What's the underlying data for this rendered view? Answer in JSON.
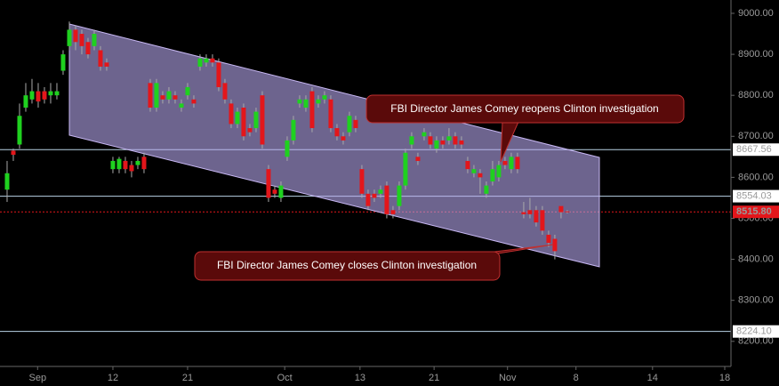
{
  "chart_data": {
    "type": "candlestick",
    "up_color": "#1fd11f",
    "down_color": "#e3161b",
    "x": [
      0,
      1,
      2,
      3,
      4,
      5,
      6,
      7,
      8,
      9,
      10,
      11,
      12,
      13,
      14,
      15,
      16,
      17,
      18,
      19,
      20,
      21,
      22,
      23,
      24,
      25,
      26,
      27,
      28,
      29,
      30,
      31,
      32,
      33,
      34,
      35,
      36,
      37,
      38,
      39,
      40,
      41,
      42,
      43,
      44,
      45,
      46,
      47,
      48,
      49,
      50,
      51,
      52,
      53,
      54,
      55,
      56,
      57,
      58,
      59,
      60,
      61,
      62,
      63,
      64,
      65,
      66,
      67,
      68,
      69,
      70,
      71,
      72,
      73,
      74,
      75,
      76,
      77,
      78,
      79,
      80,
      81,
      82,
      83,
      84,
      85,
      86,
      87,
      88,
      89,
      90
    ],
    "open": [
      8570,
      8665,
      8680,
      8770,
      8790,
      8810,
      8810,
      8800,
      8800,
      8860,
      8920,
      8960,
      8950,
      8930,
      8920,
      8910,
      8880,
      8620,
      8620,
      8640,
      8630,
      8630,
      8650,
      8830,
      8770,
      8800,
      8790,
      8800,
      8770,
      8800,
      8790,
      8870,
      8880,
      8890,
      8880,
      8830,
      8780,
      8730,
      8770,
      8720,
      8720,
      8800,
      8620,
      8570,
      8550,
      8650,
      8690,
      8780,
      8770,
      8810,
      8780,
      8790,
      8790,
      8720,
      8700,
      8710,
      8740,
      8620,
      8560,
      8560,
      8560,
      8580,
      8520,
      8530,
      8580,
      8680,
      8650,
      8700,
      8700,
      8670,
      8690,
      8690,
      8700,
      8690,
      8640,
      8610,
      8610,
      8560,
      8590,
      8600,
      8640,
      8620,
      8650,
      8515,
      8520,
      8520,
      8520,
      8460,
      8450,
      8530,
      8517
    ],
    "high": [
      8640,
      8670,
      8780,
      8830,
      8840,
      8830,
      8820,
      8830,
      8830,
      8910,
      8980,
      8970,
      8960,
      8940,
      8960,
      8920,
      8890,
      8650,
      8650,
      8650,
      8640,
      8650,
      8660,
      8840,
      8840,
      8810,
      8820,
      8810,
      8790,
      8830,
      8800,
      8900,
      8900,
      8900,
      8890,
      8840,
      8790,
      8770,
      8780,
      8730,
      8770,
      8810,
      8630,
      8580,
      8590,
      8700,
      8750,
      8800,
      8800,
      8820,
      8800,
      8810,
      8800,
      8730,
      8710,
      8760,
      8750,
      8630,
      8570,
      8570,
      8580,
      8590,
      8530,
      8590,
      8670,
      8710,
      8660,
      8720,
      8710,
      8700,
      8700,
      8720,
      8710,
      8700,
      8650,
      8630,
      8620,
      8590,
      8640,
      8640,
      8650,
      8660,
      8660,
      8540,
      8550,
      8530,
      8530,
      8470,
      8460,
      8530,
      8520
    ],
    "low": [
      8540,
      8640,
      8670,
      8760,
      8780,
      8770,
      8780,
      8780,
      8790,
      8850,
      8910,
      8910,
      8900,
      8890,
      8910,
      8860,
      8860,
      8610,
      8610,
      8610,
      8600,
      8620,
      8610,
      8760,
      8760,
      8780,
      8780,
      8780,
      8760,
      8790,
      8770,
      8860,
      8870,
      8870,
      8810,
      8780,
      8720,
      8720,
      8690,
      8700,
      8710,
      8670,
      8540,
      8550,
      8540,
      8640,
      8680,
      8770,
      8760,
      8710,
      8770,
      8780,
      8710,
      8690,
      8680,
      8700,
      8710,
      8550,
      8520,
      8540,
      8550,
      8500,
      8500,
      8520,
      8570,
      8670,
      8630,
      8690,
      8670,
      8660,
      8670,
      8680,
      8670,
      8670,
      8610,
      8600,
      8560,
      8550,
      8580,
      8590,
      8620,
      8610,
      8610,
      8500,
      8500,
      8480,
      8460,
      8430,
      8400,
      8500,
      8512
    ],
    "close": [
      8610,
      8655,
      8750,
      8800,
      8810,
      8785,
      8790,
      8810,
      8810,
      8900,
      8960,
      8930,
      8920,
      8900,
      8950,
      8870,
      8870,
      8640,
      8645,
      8620,
      8615,
      8640,
      8620,
      8770,
      8830,
      8790,
      8810,
      8790,
      8780,
      8820,
      8780,
      8890,
      8890,
      8880,
      8820,
      8790,
      8730,
      8760,
      8700,
      8710,
      8760,
      8680,
      8550,
      8560,
      8580,
      8690,
      8740,
      8790,
      8790,
      8720,
      8790,
      8800,
      8720,
      8700,
      8690,
      8750,
      8720,
      8560,
      8530,
      8550,
      8570,
      8510,
      8510,
      8580,
      8660,
      8700,
      8640,
      8710,
      8680,
      8690,
      8680,
      8700,
      8680,
      8680,
      8620,
      8620,
      8600,
      8580,
      8620,
      8630,
      8630,
      8650,
      8620,
      8510,
      8510,
      8490,
      8470,
      8440,
      8420,
      8515,
      8515.8
    ],
    "xlim": [
      -1.14,
      116.3
    ],
    "xticks": [
      {
        "value": 4.9,
        "label": "Sep"
      },
      {
        "value": 17,
        "label": "12"
      },
      {
        "value": 29,
        "label": "21"
      },
      {
        "value": 44.6,
        "label": "Oct"
      },
      {
        "value": 56.7,
        "label": "13"
      },
      {
        "value": 68.6,
        "label": "21"
      },
      {
        "value": 80.4,
        "label": "Nov"
      },
      {
        "value": 91.4,
        "label": "8"
      },
      {
        "value": 103.7,
        "label": "14"
      },
      {
        "value": 115.3,
        "label": "18"
      }
    ],
    "ylim": [
      8138.8,
      9032.5
    ],
    "yticks": [
      {
        "value": 8200,
        "label": "8200.00"
      },
      {
        "value": 8300,
        "label": "8300.00"
      },
      {
        "value": 8400,
        "label": "8400.00"
      },
      {
        "value": 8500,
        "label": "8500.00"
      },
      {
        "value": 8600,
        "label": "8600.00"
      },
      {
        "value": 8700,
        "label": "8700.00"
      },
      {
        "value": 8800,
        "label": "8800.00"
      },
      {
        "value": 8900,
        "label": "8900.00"
      },
      {
        "value": 9000,
        "label": "9000.00"
      }
    ],
    "levels": [
      8667.56,
      8554.03,
      8515.8,
      8224.1
    ],
    "level_labels": [
      "8667.56",
      "8554.03",
      "8515.80",
      "8224.10"
    ],
    "level_colors": [
      "#b9d3e6",
      "#b9d3e6",
      "#e3161b",
      "#b9d3e6"
    ],
    "annotations": [
      "FBI Director James Comey reopens Clinton investigation",
      "FBI Director James Comey closes Clinton investigation"
    ]
  }
}
